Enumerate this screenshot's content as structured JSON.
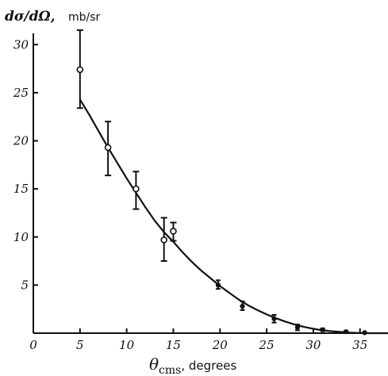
{
  "chart_data": {
    "type": "scatter",
    "title": "",
    "ylabel": {
      "symbol": "dσ/dΩ,",
      "unit": "mb/sr"
    },
    "xlabel": {
      "symbol": "θ",
      "subscript": "cms",
      "unit": ", degrees"
    },
    "xlim": [
      0,
      38
    ],
    "ylim": [
      0,
      32
    ],
    "x_ticks": [
      0,
      5,
      10,
      15,
      20,
      25,
      30,
      35
    ],
    "x_tick_labels": [
      "0",
      "5",
      "10",
      "15",
      "20",
      "25",
      "30",
      "35"
    ],
    "y_ticks": [
      5,
      10,
      15,
      20,
      25,
      30
    ],
    "y_tick_labels": [
      "5",
      "10",
      "15",
      "20",
      "25",
      "30"
    ],
    "grid": false,
    "points": [
      {
        "x": 5.0,
        "y": 27.4,
        "err_low": 23.4,
        "err_high": 31.5,
        "marker": "open"
      },
      {
        "x": 8.0,
        "y": 19.3,
        "err_low": 16.4,
        "err_high": 22.0,
        "marker": "open"
      },
      {
        "x": 11.0,
        "y": 15.0,
        "err_low": 12.9,
        "err_high": 16.8,
        "marker": "open"
      },
      {
        "x": 14.0,
        "y": 9.7,
        "err_low": 7.5,
        "err_high": 12.0,
        "marker": "open"
      },
      {
        "x": 15.0,
        "y": 10.6,
        "err_low": 9.6,
        "err_high": 11.5,
        "marker": "open"
      },
      {
        "x": 19.8,
        "y": 5.0,
        "err_low": 4.6,
        "err_high": 5.5,
        "marker": "filled"
      },
      {
        "x": 22.4,
        "y": 2.8,
        "err_low": 2.4,
        "err_high": 3.3,
        "marker": "filled"
      },
      {
        "x": 25.8,
        "y": 1.5,
        "err_low": 1.1,
        "err_high": 1.9,
        "marker": "filled"
      },
      {
        "x": 28.3,
        "y": 0.6,
        "err_low": 0.3,
        "err_high": 0.9,
        "marker": "filled"
      },
      {
        "x": 31.0,
        "y": 0.35,
        "err_low": 0.2,
        "err_high": 0.5,
        "marker": "filled"
      },
      {
        "x": 33.5,
        "y": 0.15,
        "err_low": 0.05,
        "err_high": 0.25,
        "marker": "filled"
      },
      {
        "x": 35.5,
        "y": 0.05,
        "err_low": 0.0,
        "err_high": 0.1,
        "marker": "filled"
      }
    ],
    "fit_curve": {
      "x": [
        5,
        6,
        7,
        8,
        9,
        10,
        11,
        12,
        13,
        14,
        15,
        16,
        17,
        18,
        19,
        20,
        21,
        22,
        23,
        24,
        25,
        26,
        27,
        28,
        29,
        30,
        31,
        32,
        33,
        34,
        35,
        36,
        37,
        38
      ],
      "y": [
        24.3,
        22.7,
        21.0,
        19.3,
        17.7,
        16.1,
        14.6,
        13.1,
        11.7,
        10.5,
        9.5,
        8.4,
        7.4,
        6.5,
        5.7,
        4.9,
        4.2,
        3.5,
        2.9,
        2.4,
        1.95,
        1.55,
        1.2,
        0.9,
        0.65,
        0.45,
        0.3,
        0.2,
        0.12,
        0.06,
        0.02,
        0.0,
        0.0,
        0.0
      ]
    }
  }
}
